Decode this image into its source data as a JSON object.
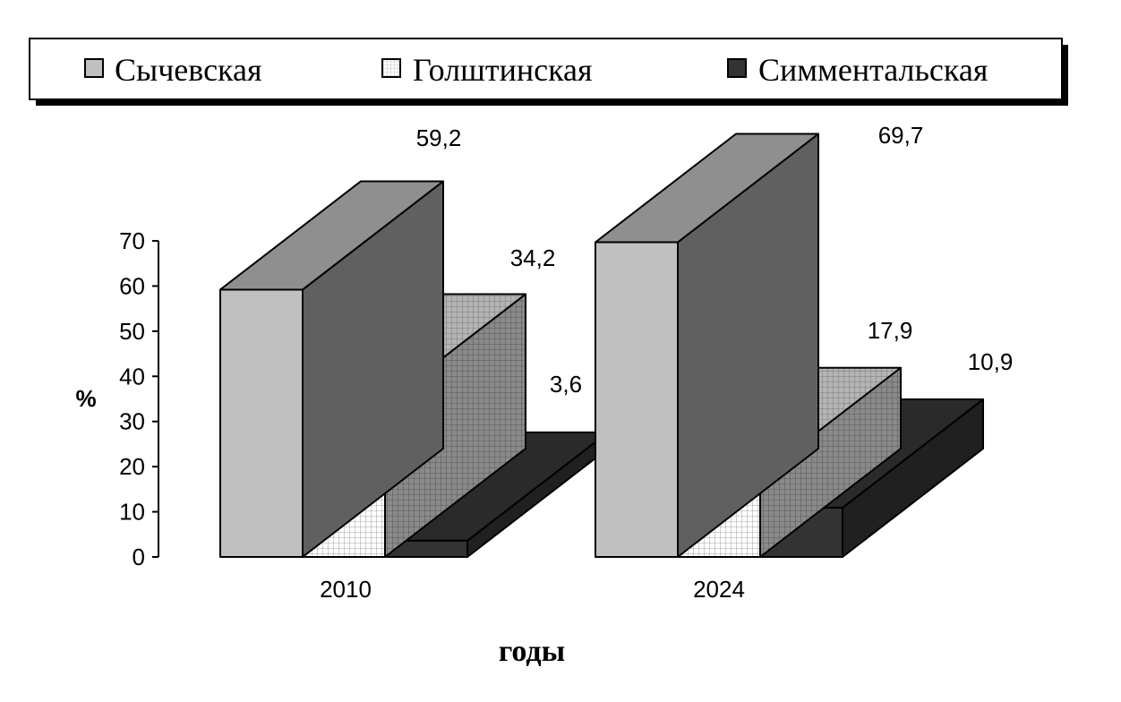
{
  "chart_data": {
    "type": "bar",
    "categories": [
      "2010",
      "2024"
    ],
    "series": [
      {
        "name": "Сычевская",
        "values": [
          59.2,
          69.7
        ],
        "labels": [
          "59,2",
          "69,7"
        ],
        "color": "#c0c0c0"
      },
      {
        "name": "Голштинская",
        "values": [
          34.2,
          17.9
        ],
        "labels": [
          "34,2",
          "17,9"
        ],
        "color": "#ffffff"
      },
      {
        "name": "Симментальская",
        "values": [
          3.6,
          10.9
        ],
        "labels": [
          "3,6",
          "10,9"
        ],
        "color": "#404040"
      }
    ],
    "title": "",
    "xlabel": "годы",
    "ylabel": "%",
    "ylim": [
      0,
      70
    ],
    "yticks": [
      0,
      10,
      20,
      30,
      40,
      50,
      60,
      70
    ],
    "legend": "top",
    "grid": false
  }
}
